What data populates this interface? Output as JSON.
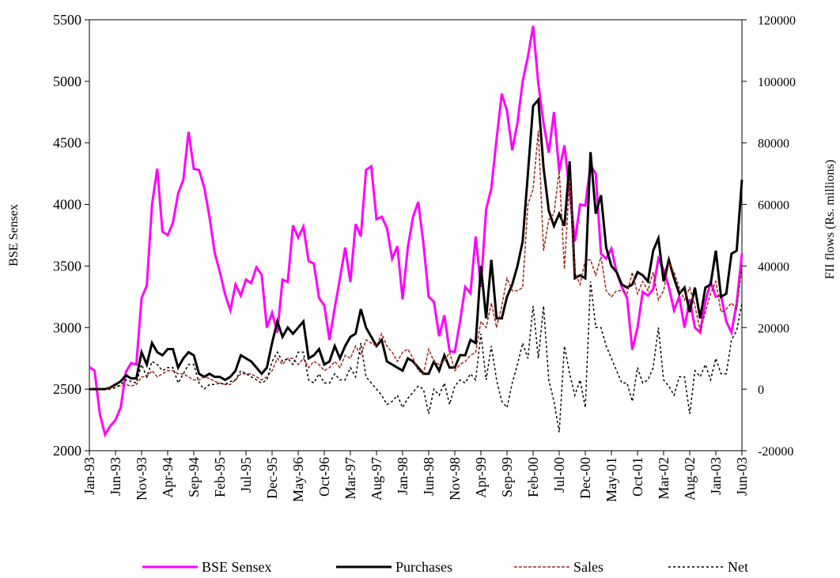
{
  "chart_data": {
    "type": "line",
    "y_label": "BSE Sensex",
    "y2_label": "FII flows (Rs. millions)",
    "categories": [
      "Jan-93",
      null,
      null,
      null,
      null,
      "Jun-93",
      null,
      null,
      null,
      null,
      "Nov-93",
      null,
      null,
      null,
      null,
      "Apr-94",
      null,
      null,
      null,
      null,
      "Sep-94",
      null,
      null,
      null,
      null,
      "Feb-95",
      null,
      null,
      null,
      null,
      "Jul-95",
      null,
      null,
      null,
      null,
      "Dec-95",
      null,
      null,
      null,
      null,
      "May-96",
      null,
      null,
      null,
      null,
      "Oct-96",
      null,
      null,
      null,
      null,
      "Mar-97",
      null,
      null,
      null,
      null,
      "Aug-97",
      null,
      null,
      null,
      null,
      "Jan-98",
      null,
      null,
      null,
      null,
      "Jun-98",
      null,
      null,
      null,
      null,
      "Nov-98",
      null,
      null,
      null,
      null,
      "Apr-99",
      null,
      null,
      null,
      null,
      "Sep-99",
      null,
      null,
      null,
      null,
      "Feb-00",
      null,
      null,
      null,
      null,
      "Jul-00",
      null,
      null,
      null,
      null,
      "Dec-00",
      null,
      null,
      null,
      null,
      "May-01",
      null,
      null,
      null,
      null,
      "Oct-01",
      null,
      null,
      null,
      null,
      "Mar-02",
      null,
      null,
      null,
      null,
      "Aug-02",
      null,
      null,
      null,
      null,
      "Jan-03",
      null,
      null,
      null,
      null,
      "Jun-03"
    ],
    "ylim": [
      2000,
      5500
    ],
    "yticks": [
      2000,
      2500,
      3000,
      3500,
      4000,
      4500,
      5000,
      5500
    ],
    "y2lim": [
      -20000,
      120000
    ],
    "y2ticks": [
      -20000,
      0,
      20000,
      40000,
      60000,
      80000,
      100000,
      120000
    ],
    "legend": "bottom",
    "series": [
      {
        "name": "BSE Sensex",
        "color": "#ff00ff",
        "style": "solid",
        "values": [
          2680,
          2650,
          2300,
          2130,
          2200,
          2250,
          2350,
          2640,
          2710,
          2700,
          3240,
          3340,
          4000,
          4290,
          3780,
          3750,
          3850,
          4090,
          4200,
          4590,
          4290,
          4280,
          4140,
          3900,
          3610,
          3450,
          3270,
          3140,
          3350,
          3260,
          3390,
          3360,
          3490,
          3430,
          3000,
          3120,
          2960,
          3390,
          3370,
          3830,
          3730,
          3820,
          3540,
          3520,
          3240,
          3180,
          2900,
          3160,
          3400,
          3650,
          3370,
          3840,
          3740,
          4280,
          4310,
          3880,
          3900,
          3810,
          3560,
          3660,
          3230,
          3650,
          3900,
          4020,
          3680,
          3250,
          3210,
          2930,
          3100,
          2810,
          2800,
          3050,
          3330,
          3280,
          3740,
          3330,
          3960,
          4130,
          4530,
          4900,
          4760,
          4440,
          4660,
          5000,
          5200,
          5450,
          4980,
          4660,
          4420,
          4750,
          4270,
          4480,
          4100,
          3700,
          4000,
          3990,
          4320,
          4250,
          3600,
          3560,
          3640,
          3450,
          3330,
          3240,
          2820,
          3000,
          3290,
          3260,
          3310,
          3560,
          3470,
          3330,
          3140,
          3250,
          3000,
          3230,
          3000,
          2960,
          3210,
          3370,
          3250,
          3260,
          3050,
          2960,
          3200,
          3600
        ]
      },
      {
        "name": "Purchases",
        "color": "#000000",
        "style": "solid",
        "axis": "y2",
        "values": [
          0,
          0,
          0,
          0,
          500,
          1500,
          2500,
          4500,
          3500,
          3500,
          12000,
          8000,
          15000,
          12000,
          11000,
          13000,
          13000,
          7000,
          10000,
          12000,
          11000,
          5000,
          4000,
          5000,
          4000,
          4000,
          3000,
          4000,
          6000,
          11000,
          10000,
          9000,
          7000,
          5000,
          7000,
          15000,
          22000,
          17000,
          20000,
          18000,
          20000,
          22000,
          10000,
          11000,
          13000,
          8000,
          9000,
          14000,
          10000,
          14000,
          17000,
          18000,
          26000,
          20000,
          17000,
          14000,
          16000,
          9000,
          8000,
          7000,
          6000,
          10000,
          9000,
          7000,
          5000,
          5000,
          9000,
          6000,
          11000,
          7000,
          7000,
          11000,
          11000,
          16000,
          15000,
          40000,
          23000,
          42000,
          23000,
          23000,
          30000,
          34000,
          40000,
          48000,
          70000,
          92000,
          94000,
          72000,
          58000,
          53000,
          57000,
          53000,
          74000,
          36000,
          37000,
          36000,
          77000,
          57000,
          63000,
          46000,
          40000,
          38000,
          34000,
          33000,
          34000,
          38000,
          37000,
          35000,
          45000,
          49000,
          35000,
          42000,
          36000,
          31000,
          33000,
          25000,
          33000,
          23000,
          33000,
          34000,
          45000,
          30000,
          31000,
          44000,
          45000,
          68000
        ]
      },
      {
        "name": "Sales",
        "color": "#a0281e",
        "style": "dashed",
        "axis": "y2",
        "values": [
          0,
          0,
          0,
          0,
          500,
          1000,
          1000,
          1500,
          1000,
          1500,
          4000,
          4000,
          6000,
          4000,
          5000,
          6000,
          6000,
          5000,
          5000,
          4000,
          3000,
          3000,
          4000,
          3500,
          2500,
          2000,
          1500,
          1500,
          3000,
          5000,
          5000,
          5000,
          4000,
          3000,
          4000,
          6000,
          10000,
          8000,
          10000,
          10000,
          8000,
          10000,
          7000,
          9000,
          8000,
          6000,
          7000,
          9000,
          7000,
          11000,
          10000,
          14000,
          11000,
          16000,
          15000,
          14000,
          18000,
          14000,
          12000,
          9000,
          12000,
          13000,
          10000,
          6000,
          5000,
          13000,
          9000,
          8000,
          9000,
          12000,
          6000,
          8000,
          9000,
          11000,
          12000,
          22000,
          20000,
          28000,
          20000,
          27000,
          36000,
          32000,
          32000,
          33000,
          60000,
          65000,
          84000,
          45000,
          55000,
          57000,
          71000,
          39000,
          69000,
          38000,
          34000,
          42000,
          42000,
          37000,
          43000,
          32000,
          30000,
          32000,
          32000,
          31000,
          38000,
          31000,
          35000,
          32000,
          38000,
          29000,
          32000,
          41000,
          38000,
          33000,
          29000,
          33000,
          27000,
          19000,
          25000,
          31000,
          35000,
          25000,
          26000,
          28000,
          26000,
          40000
        ]
      },
      {
        "name": "Net",
        "color": "#000000",
        "style": "dotted",
        "axis": "y2",
        "values": [
          0,
          0,
          0,
          0,
          0,
          500,
          1500,
          3000,
          2500,
          2000,
          8000,
          4000,
          9000,
          8000,
          6000,
          7000,
          7000,
          2000,
          5000,
          8000,
          8000,
          2000,
          0,
          1500,
          1500,
          2000,
          1500,
          2500,
          3000,
          6000,
          5000,
          4000,
          3000,
          2000,
          3000,
          9000,
          12000,
          9000,
          10000,
          8000,
          12000,
          12000,
          3000,
          2000,
          5000,
          2000,
          2000,
          5000,
          3000,
          3000,
          7000,
          4000,
          15000,
          4000,
          2000,
          0,
          -2000,
          -5000,
          -4000,
          -2000,
          -6000,
          -3000,
          -1000,
          1000,
          0,
          -8000,
          0,
          -2000,
          2000,
          -5000,
          1000,
          3000,
          2000,
          5000,
          3000,
          18000,
          3000,
          14000,
          3000,
          -4000,
          -6000,
          2000,
          8000,
          15000,
          10000,
          27000,
          10000,
          27000,
          3000,
          -4000,
          -14000,
          14000,
          5000,
          -2000,
          3000,
          -6000,
          35000,
          20000,
          20000,
          14000,
          10000,
          6000,
          2000,
          2000,
          -4000,
          7000,
          2000,
          3000,
          7000,
          20000,
          3000,
          1000,
          -2000,
          4000,
          4000,
          -8000,
          6000,
          4000,
          8000,
          3000,
          10000,
          5000,
          5000,
          16000,
          19000,
          28000
        ]
      }
    ]
  }
}
